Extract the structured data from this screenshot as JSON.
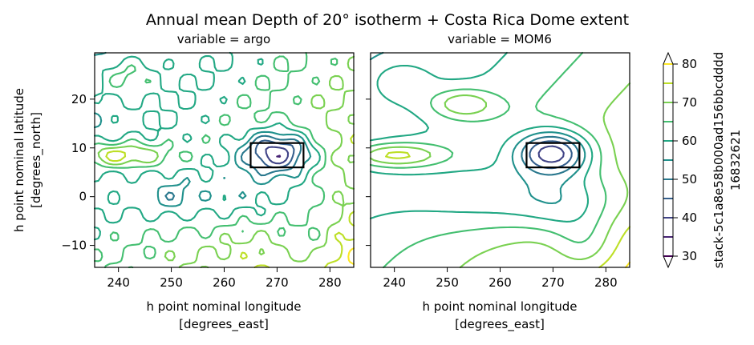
{
  "chart_data": {
    "type": "contour",
    "title": "Annual mean Depth of 20° isotherm + Costa Rica Dome extent",
    "panels": [
      {
        "subtitle": "variable = argo",
        "xlabel": [
          "h point nominal longitude",
          "[degrees_east]"
        ],
        "ylabel": [
          "h point nominal latitude",
          "[degrees_north]"
        ],
        "xlim": [
          235.5,
          284.5
        ],
        "ylim": [
          -14.5,
          29.5
        ],
        "xticks": [
          240,
          250,
          260,
          270,
          280
        ],
        "yticks": [
          -10,
          0,
          10,
          20
        ],
        "dome_box": {
          "lon": [
            265,
            275
          ],
          "lat": [
            6,
            11
          ]
        },
        "show_y_tick_labels": true
      },
      {
        "subtitle": "variable = MOM6",
        "xlabel": [
          "h point nominal longitude",
          "[degrees_east]"
        ],
        "ylabel": null,
        "xlim": [
          235.5,
          284.5
        ],
        "ylim": [
          -14.5,
          29.5
        ],
        "xticks": [
          240,
          250,
          260,
          270,
          280
        ],
        "yticks": [
          -10,
          0,
          10,
          20
        ],
        "dome_box": {
          "lon": [
            265,
            275
          ],
          "lat": [
            6,
            11
          ]
        },
        "show_y_tick_labels": false
      }
    ],
    "colorbar": {
      "label": [
        "stack-5c1a8e58b000ad156bbcdddd",
        "16832621"
      ],
      "min": 30,
      "max": 80,
      "ticks": [
        30,
        40,
        50,
        60,
        70,
        80
      ],
      "levels": [
        30,
        35,
        40,
        45,
        50,
        55,
        60,
        65,
        70,
        75,
        80
      ],
      "extend": "both",
      "colormap": "viridis"
    }
  }
}
